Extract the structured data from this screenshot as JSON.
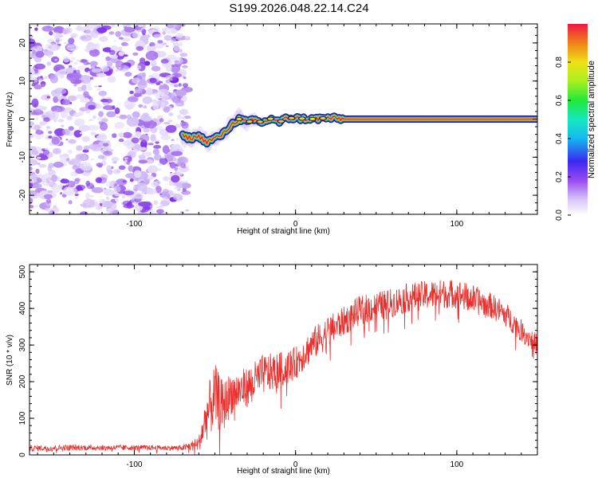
{
  "figure": {
    "title": "S199.2026.048.22.14.C24"
  },
  "chart_data": [
    {
      "type": "heatmap",
      "title": "S199.2026.048.22.14.C24",
      "xlabel": "Height of straight line (km)",
      "ylabel": "Frequency (Hz)",
      "xlim": [
        -165,
        150
      ],
      "ylim": [
        -25,
        25
      ],
      "xticks": [
        -100,
        0,
        100
      ],
      "xtick_labels": [
        "-100",
        "0",
        "100"
      ],
      "yticks": [
        -20,
        -10,
        0,
        10,
        20
      ],
      "ytick_labels": [
        "-20",
        "-10",
        "0",
        "10",
        "20"
      ],
      "noise_region_x": [
        -165,
        -67
      ],
      "signal_trace": {
        "x": [
          -70,
          -65,
          -60,
          -55,
          -50,
          -45,
          -40,
          -35,
          -30,
          -25,
          -20,
          -15,
          -10,
          -5,
          0,
          10,
          20,
          30,
          40,
          60,
          80,
          100,
          120,
          150
        ],
        "frequency": [
          -4.5,
          -5,
          -4.5,
          -6,
          -5,
          -4,
          -1.5,
          0,
          -0.8,
          -0.3,
          -1,
          0.2,
          -0.8,
          0.3,
          0.2,
          0,
          0.3,
          0,
          0,
          0,
          0,
          0,
          0,
          0
        ]
      },
      "colorbar": {
        "label": "Normalized spectral amplitude",
        "range": [
          0,
          1
        ],
        "ticks": [
          0.0,
          0.2,
          0.4,
          0.6,
          0.8
        ],
        "tick_labels": [
          "0.0",
          "0.2",
          "0.4",
          "0.6",
          "0.8"
        ]
      }
    },
    {
      "type": "line",
      "xlabel": "Height of straight line (km)",
      "ylabel": "SNR (10 * v/v)",
      "xlim": [
        -165,
        150
      ],
      "ylim": [
        0,
        520
      ],
      "xticks": [
        -100,
        0,
        100
      ],
      "xtick_labels": [
        "-100",
        "0",
        "100"
      ],
      "yticks": [
        0,
        100,
        200,
        300,
        400,
        500
      ],
      "ytick_labels": [
        "0",
        "100",
        "200",
        "300",
        "400",
        "500"
      ],
      "series": [
        {
          "name": "SNR",
          "color": "#e8312e",
          "envelope_x": [
            -165,
            -140,
            -100,
            -70,
            -60,
            -55,
            -50,
            -45,
            -40,
            -35,
            -30,
            -20,
            -10,
            0,
            10,
            20,
            30,
            40,
            50,
            60,
            70,
            80,
            90,
            100,
            110,
            120,
            130,
            140,
            150
          ],
          "envelope_mean": [
            18,
            20,
            20,
            19,
            30,
            110,
            160,
            130,
            170,
            175,
            185,
            220,
            230,
            250,
            300,
            335,
            365,
            395,
            405,
            415,
            430,
            435,
            440,
            440,
            425,
            410,
            385,
            340,
            300
          ],
          "envelope_spread": [
            8,
            8,
            7,
            7,
            20,
            70,
            90,
            70,
            60,
            55,
            55,
            55,
            50,
            45,
            45,
            45,
            40,
            40,
            40,
            40,
            40,
            40,
            40,
            40,
            40,
            35,
            35,
            30,
            30
          ]
        }
      ]
    }
  ]
}
